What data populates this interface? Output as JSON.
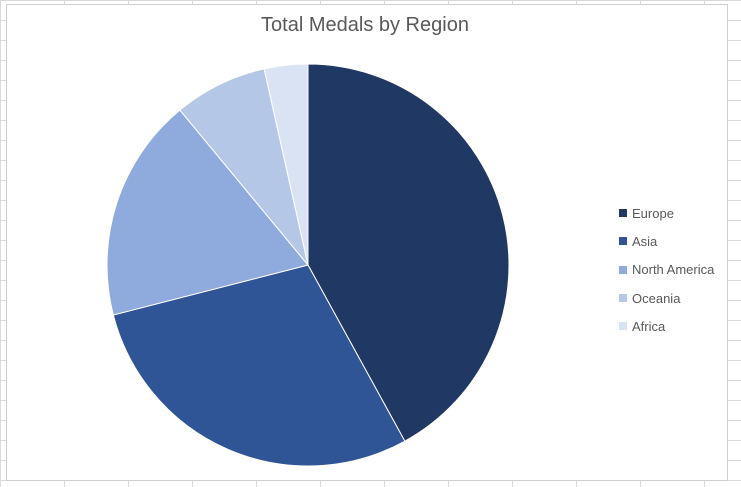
{
  "chart_data": {
    "type": "pie",
    "title": "Total Medals by Region",
    "categories": [
      "Europe",
      "Asia",
      "North America",
      "Oceania",
      "Africa"
    ],
    "values": [
      42,
      29,
      18,
      7.5,
      3.5
    ],
    "colors": [
      "#203864",
      "#2f5597",
      "#8faadc",
      "#b4c7e7",
      "#dae3f3"
    ],
    "legend_position": "right",
    "start_angle_deg": 0,
    "direction": "clockwise"
  }
}
